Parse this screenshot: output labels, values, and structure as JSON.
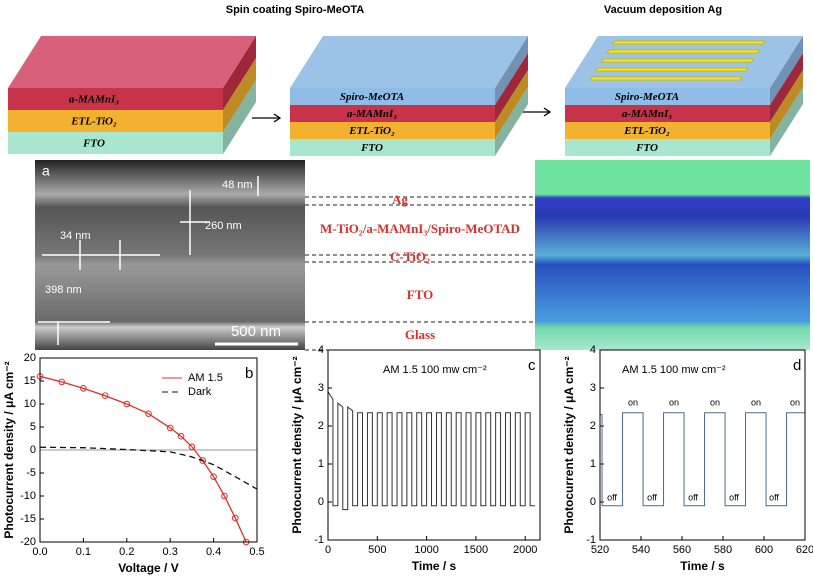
{
  "schematic": {
    "steps": [
      "Spin coating Spiro-MeOTA",
      "Vacuum deposition Ag"
    ],
    "stacks": [
      [
        "a-MAMnI₃",
        "ETL-TiO₂",
        "FTO"
      ],
      [
        "Spiro-MeOTA",
        "a-MAMnI₃",
        "ETL-TiO₂",
        "FTO"
      ],
      [
        "Spiro-MeOTA",
        "a-MAMnI₃",
        "ETL-TiO₂",
        "FTO"
      ]
    ]
  },
  "micrograph": {
    "panel": "a",
    "labels": [
      "48 nm",
      "260 nm",
      "34 nm",
      "398 nm"
    ],
    "scale_bar": "500 nm",
    "layers": [
      "Ag",
      "M-TiO₂/a-MAMnI₃/Spiro-MeOTAD",
      "C-TiO₂",
      "FTO",
      "Glass"
    ]
  },
  "chart_data": [
    {
      "type": "line",
      "panel": "b",
      "xlabel": "Voltage / V",
      "ylabel": "Photocurrent density / μA cm⁻²",
      "xlim": [
        0,
        0.5
      ],
      "ylim": [
        -20,
        20
      ],
      "xticks": [
        {
          "value": 0,
          "label": "0.0"
        },
        0.1,
        0.2,
        0.3,
        0.4,
        0.5
      ],
      "yticks": [
        -20,
        -15,
        -10,
        -5,
        0,
        5,
        10,
        15,
        20
      ],
      "legend": "upper right",
      "series": [
        {
          "name": "AM 1.5",
          "color": "#e0302a",
          "markers": true,
          "x": [
            0,
            0.05,
            0.1,
            0.15,
            0.2,
            0.25,
            0.3,
            0.325,
            0.35,
            0.375,
            0.4,
            0.425,
            0.45,
            0.475
          ],
          "values": [
            16,
            14.8,
            13.4,
            11.8,
            10,
            7.9,
            4.8,
            3,
            0.7,
            -2.3,
            -5.8,
            -10,
            -14.8,
            -20
          ]
        },
        {
          "name": "Dark",
          "color": "#111111",
          "dash": true,
          "x": [
            0,
            0.1,
            0.2,
            0.3,
            0.35,
            0.4,
            0.45,
            0.5
          ],
          "values": [
            0.6,
            0.5,
            0.1,
            -0.4,
            -1.5,
            -3.2,
            -5.8,
            -8.5
          ]
        }
      ]
    },
    {
      "type": "line",
      "panel": "c",
      "xlabel": "Time / s",
      "ylabel": "Photocurrent density / μA cm⁻²",
      "annotation": "AM 1.5 100 mw cm⁻²",
      "xlim": [
        0,
        2150
      ],
      "ylim": [
        -1,
        4
      ],
      "xticks": [
        0,
        500,
        1000,
        1500,
        2000
      ],
      "yticks": [
        -1,
        0,
        1,
        2,
        3,
        4
      ],
      "x": [
        0,
        50,
        50,
        100,
        100,
        150,
        150,
        200,
        200,
        250,
        250,
        300,
        300,
        350,
        350,
        400,
        400,
        450,
        450,
        500,
        500,
        550,
        550,
        600,
        600,
        650,
        650,
        700,
        700,
        750,
        750,
        800,
        800,
        850,
        850,
        900,
        900,
        950,
        950,
        1000,
        1000,
        1050,
        1050,
        1100,
        1100,
        1150,
        1150,
        1200,
        1200,
        1250,
        1250,
        1300,
        1300,
        1350,
        1350,
        1400,
        1400,
        1450,
        1450,
        1500,
        1500,
        1550,
        1550,
        1600,
        1600,
        1650,
        1650,
        1700,
        1700,
        1750,
        1750,
        1800,
        1800,
        1850,
        1850,
        1900,
        1900,
        1950,
        1950,
        2000,
        2000,
        2050,
        2050,
        2100
      ],
      "series": [
        {
          "color": "#333333",
          "values": [
            2.9,
            2.7,
            -0.1,
            -0.1,
            2.6,
            2.5,
            -0.2,
            -0.2,
            2.5,
            2.4,
            -0.1,
            -0.1,
            2.35,
            2.35,
            -0.1,
            -0.1,
            2.35,
            2.35,
            -0.1,
            -0.1,
            2.35,
            2.35,
            -0.1,
            -0.1,
            2.35,
            2.35,
            -0.1,
            -0.1,
            2.35,
            2.35,
            -0.1,
            -0.1,
            2.35,
            2.35,
            -0.1,
            -0.1,
            2.35,
            2.35,
            -0.1,
            -0.1,
            2.35,
            2.35,
            -0.1,
            -0.1,
            2.35,
            2.35,
            -0.1,
            -0.1,
            2.35,
            2.35,
            -0.1,
            -0.1,
            2.35,
            2.35,
            -0.1,
            -0.1,
            2.35,
            2.35,
            -0.1,
            -0.1,
            2.35,
            2.35,
            -0.1,
            -0.1,
            2.35,
            2.35,
            -0.1,
            -0.1,
            2.35,
            2.35,
            -0.1,
            -0.1,
            2.35,
            2.35,
            -0.1,
            -0.1,
            2.35,
            2.35,
            -0.1,
            -0.1,
            2.35,
            2.35,
            -0.1,
            -0.1
          ]
        }
      ]
    },
    {
      "type": "line",
      "panel": "d",
      "xlabel": "Time / s",
      "ylabel": "Photocurrent density / μA cm⁻²",
      "annotation": "AM 1.5 100 mw cm⁻²",
      "on_labels": [
        "on",
        "on",
        "on",
        "on",
        "on"
      ],
      "off_labels": [
        "off",
        "off",
        "off",
        "off",
        "off"
      ],
      "xlim": [
        520,
        620
      ],
      "ylim": [
        -1,
        4
      ],
      "xticks": [
        520,
        540,
        560,
        580,
        600,
        620
      ],
      "yticks": [
        -1,
        0,
        1,
        2,
        3,
        4
      ],
      "x": [
        520,
        521,
        521,
        531,
        531,
        541,
        541,
        551,
        551,
        561,
        561,
        571,
        571,
        581,
        581,
        591,
        591,
        601,
        601,
        611,
        611,
        620
      ],
      "series": [
        {
          "color": "#4a6a8a",
          "values": [
            2.3,
            2.3,
            -0.1,
            -0.1,
            2.35,
            2.35,
            -0.1,
            -0.1,
            2.35,
            2.35,
            -0.1,
            -0.1,
            2.35,
            2.35,
            -0.1,
            -0.1,
            2.35,
            2.35,
            -0.1,
            -0.1,
            2.35,
            2.35
          ]
        }
      ]
    }
  ]
}
